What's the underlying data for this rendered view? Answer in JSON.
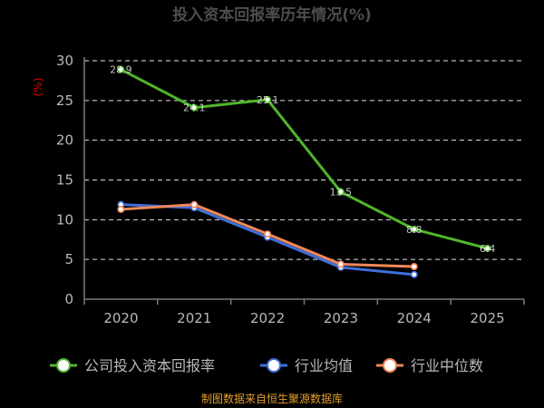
{
  "chart_data": {
    "type": "line",
    "title": "投入资本回报率历年情况(%)",
    "unit_label": "(%)",
    "categories": [
      "2020",
      "2021",
      "2022",
      "2023",
      "2024",
      "2025"
    ],
    "ylim": [
      0,
      30
    ],
    "yticks": [
      0,
      5,
      10,
      15,
      20,
      25,
      30
    ],
    "grid": true,
    "legend_position": "bottom",
    "series": [
      {
        "name": "公司投入资本回报率",
        "color": "#52b52c",
        "values": [
          28.9,
          24.1,
          25.1,
          13.5,
          8.8,
          6.4
        ]
      },
      {
        "name": "行业均值",
        "color": "#3f6fd8",
        "values": [
          11.9,
          11.5,
          7.8,
          4.0,
          3.1,
          null
        ]
      },
      {
        "name": "行业中位数",
        "color": "#f0875a",
        "values": [
          11.3,
          11.9,
          8.2,
          4.4,
          4.1,
          null
        ]
      }
    ],
    "source_note": "制图数据来自恒生聚源数据库"
  }
}
